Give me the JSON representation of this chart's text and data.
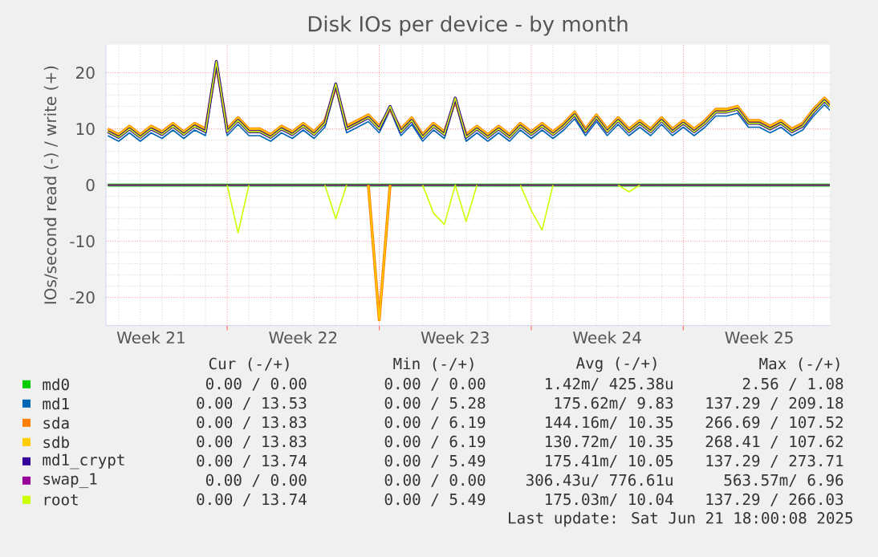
{
  "chart_data": {
    "type": "line",
    "title": "Disk IOs per device - by month",
    "ylabel": "IOs/second read (-) / write (+)",
    "x": [
      "2025-05-19T12:00",
      "2025-05-20T00:00",
      "2025-05-20T12:00",
      "2025-05-21T00:00",
      "2025-05-21T12:00",
      "2025-05-22T00:00",
      "2025-05-22T12:00",
      "2025-05-23T00:00",
      "2025-05-23T12:00",
      "2025-05-24T00:00",
      "2025-05-24T12:00",
      "2025-05-25T00:00",
      "2025-05-25T12:00",
      "2025-05-26T00:00",
      "2025-05-26T12:00",
      "2025-05-27T00:00",
      "2025-05-27T12:00",
      "2025-05-28T00:00",
      "2025-05-28T12:00",
      "2025-05-29T00:00",
      "2025-05-29T12:00",
      "2025-05-30T00:00",
      "2025-05-30T12:00",
      "2025-05-31T00:00",
      "2025-05-31T12:00",
      "2025-06-01T00:00",
      "2025-06-01T12:00",
      "2025-06-02T00:00",
      "2025-06-02T12:00",
      "2025-06-03T00:00",
      "2025-06-03T12:00",
      "2025-06-04T00:00",
      "2025-06-04T12:00",
      "2025-06-05T00:00",
      "2025-06-05T12:00",
      "2025-06-06T00:00",
      "2025-06-06T12:00",
      "2025-06-07T00:00",
      "2025-06-07T12:00",
      "2025-06-08T00:00",
      "2025-06-08T12:00",
      "2025-06-09T00:00",
      "2025-06-09T12:00",
      "2025-06-10T00:00",
      "2025-06-10T12:00",
      "2025-06-11T00:00",
      "2025-06-11T12:00",
      "2025-06-12T00:00",
      "2025-06-12T12:00",
      "2025-06-13T00:00",
      "2025-06-13T12:00",
      "2025-06-14T00:00",
      "2025-06-14T12:00",
      "2025-06-15T00:00",
      "2025-06-15T12:00",
      "2025-06-16T00:00",
      "2025-06-16T12:00",
      "2025-06-17T00:00",
      "2025-06-17T12:00",
      "2025-06-18T00:00",
      "2025-06-18T12:00",
      "2025-06-19T00:00",
      "2025-06-19T12:00",
      "2025-06-20T00:00",
      "2025-06-20T12:00",
      "2025-06-21T00:00",
      "2025-06-21T12:00",
      "2025-06-21T18:00"
    ],
    "xlim": [
      "2025-05-19T10:00",
      "2025-06-21T18:00"
    ],
    "xticks": [
      {
        "value": "2025-05-25",
        "label": null
      },
      {
        "value": "2025-06-01",
        "label": null
      },
      {
        "value": "2025-06-08",
        "label": null
      },
      {
        "value": "2025-06-15",
        "label": null
      },
      {
        "value": "2025-05-21T12:00",
        "label": "Week 21"
      },
      {
        "value": "2025-05-28T12:00",
        "label": "Week 22"
      },
      {
        "value": "2025-06-04T12:00",
        "label": "Week 23"
      },
      {
        "value": "2025-06-11T12:00",
        "label": "Week 24"
      },
      {
        "value": "2025-06-18T12:00",
        "label": "Week 25"
      }
    ],
    "ylim": [
      -25,
      25
    ],
    "yticks": [
      -20,
      -10,
      0,
      10,
      20
    ],
    "grid": true,
    "legend": "bottom",
    "series": [
      {
        "name": "md0",
        "color": "#00cc00",
        "values": [
          0,
          0,
          0,
          0,
          0,
          0,
          0,
          0,
          0,
          0,
          0,
          0,
          0,
          0,
          0,
          0,
          0,
          0,
          0,
          0,
          0,
          0,
          0,
          0,
          0,
          0,
          0,
          0,
          0,
          0,
          0,
          0,
          0,
          0,
          0,
          0,
          0,
          0,
          0,
          0,
          0,
          0,
          0,
          0,
          0,
          0,
          0,
          0,
          0,
          0,
          0,
          0,
          0,
          0,
          0,
          0,
          0,
          0,
          0,
          0,
          0,
          0,
          0,
          0,
          0,
          0,
          0,
          0
        ]
      },
      {
        "name": "md1",
        "color": "#0066b3",
        "values": [
          8.8,
          7.8,
          9.3,
          7.8,
          9.3,
          8.3,
          9.8,
          8.3,
          9.8,
          8.8,
          21.3,
          8.8,
          10.8,
          8.8,
          8.8,
          7.8,
          9.3,
          8.3,
          9.8,
          8.3,
          10.3,
          17.3,
          9.3,
          10.3,
          11.3,
          9.3,
          13.3,
          8.8,
          10.8,
          7.8,
          9.8,
          8.3,
          14.8,
          7.8,
          9.3,
          7.8,
          9.3,
          7.8,
          9.8,
          8.3,
          9.8,
          8.3,
          9.8,
          11.8,
          8.8,
          11.3,
          8.8,
          10.8,
          8.8,
          10.3,
          8.8,
          10.8,
          8.8,
          10.3,
          8.8,
          10.3,
          12.3,
          12.3,
          12.8,
          10.3,
          10.3,
          9.3,
          10.3,
          8.8,
          9.8,
          12.3,
          14.3,
          13.3
        ]
      },
      {
        "name": "sda",
        "color": "#ff8000",
        "values": [
          10,
          9,
          10.5,
          9,
          10.5,
          9.5,
          11,
          9.5,
          11,
          10,
          21.5,
          10,
          12,
          10,
          10,
          9,
          10.5,
          9.5,
          11,
          9.5,
          11.5,
          17.5,
          10.5,
          11.5,
          12.5,
          10.5,
          13.5,
          10,
          12,
          9,
          11,
          9.5,
          15,
          9,
          10.5,
          9,
          10.5,
          9,
          11,
          9.5,
          11,
          9.5,
          11,
          13,
          10,
          12.5,
          10,
          12,
          10,
          11.5,
          10,
          12,
          10,
          11.5,
          10,
          11.5,
          13.5,
          13.5,
          14,
          11.5,
          11.5,
          10.5,
          11.5,
          10,
          11,
          13.5,
          15.5,
          14.5
        ]
      },
      {
        "name": "sdb",
        "color": "#ffcc00",
        "values": [
          10,
          9,
          10.5,
          9,
          10.5,
          9.5,
          11,
          9.5,
          11,
          10,
          21.5,
          10,
          12,
          10,
          10,
          9,
          10.5,
          9.5,
          11,
          9.5,
          11.5,
          17.5,
          10.5,
          11.5,
          12.5,
          10.5,
          13.5,
          10,
          12,
          9,
          11,
          9.5,
          15,
          9,
          10.5,
          9,
          10.5,
          9,
          11,
          9.5,
          11,
          9.5,
          11,
          13,
          10,
          12.5,
          10,
          12,
          10,
          11.5,
          10,
          12,
          10,
          11.5,
          10,
          11.5,
          13.5,
          13.5,
          14,
          11.5,
          11.5,
          10.5,
          11.5,
          10,
          11,
          13.5,
          15.5,
          14.5
        ]
      },
      {
        "name": "md1_crypt",
        "color": "#330099",
        "values": [
          9.5,
          8.5,
          10,
          8.5,
          10,
          9,
          10.5,
          9,
          10.5,
          9.5,
          22,
          9.5,
          11.5,
          9.5,
          9.5,
          8.5,
          10,
          9,
          10.5,
          9,
          11,
          18,
          10,
          11,
          12,
          10,
          14,
          9.5,
          11.5,
          8.5,
          10.5,
          9,
          15.5,
          8.5,
          10,
          8.5,
          10,
          8.5,
          10.5,
          9,
          10.5,
          9,
          10.5,
          12.5,
          9.5,
          12,
          9.5,
          11.5,
          9.5,
          11,
          9.5,
          11.5,
          9.5,
          11,
          9.5,
          11,
          13,
          13,
          13.5,
          11,
          11,
          10,
          11,
          9.5,
          10.5,
          13,
          15,
          14
        ]
      },
      {
        "name": "swap_1",
        "color": "#990099",
        "values": [
          0,
          0,
          0,
          0,
          0,
          0,
          0,
          0,
          0,
          0,
          0,
          0,
          0,
          0,
          0,
          0,
          0,
          0,
          0,
          0,
          0,
          0,
          0,
          0,
          0,
          0,
          0,
          0,
          0,
          0,
          0,
          0,
          0,
          0,
          0,
          0,
          0,
          0,
          0,
          0,
          0,
          0,
          0,
          0,
          0,
          0,
          0,
          0,
          0,
          0,
          0,
          0,
          0,
          0,
          0,
          0,
          0,
          0,
          0,
          0,
          0,
          0,
          0,
          0,
          0,
          0,
          0,
          0
        ]
      },
      {
        "name": "root",
        "color": "#ccff00",
        "values": [
          9.5,
          8.5,
          10,
          8.5,
          10,
          9,
          10.5,
          9,
          10.5,
          9.5,
          22,
          9.5,
          11.5,
          9.5,
          9.5,
          8.5,
          10,
          9,
          10.5,
          9,
          11,
          18,
          10,
          11,
          12,
          10,
          14,
          9.5,
          11.5,
          8.5,
          10.5,
          9,
          15.5,
          8.5,
          10,
          8.5,
          10,
          8.5,
          10.5,
          9,
          10.5,
          9,
          10.5,
          12.5,
          9.5,
          12,
          9.5,
          11.5,
          9.5,
          11,
          9.5,
          11.5,
          9.5,
          11,
          9.5,
          11,
          13,
          13,
          13.5,
          11,
          11,
          10,
          11,
          9.5,
          10.5,
          13,
          15,
          14
        ]
      },
      {
        "color": "#ff8000",
        "values": [
          null,
          null,
          null,
          null,
          null,
          null,
          null,
          null,
          null,
          null,
          null,
          null,
          null,
          null,
          null,
          null,
          null,
          null,
          null,
          null,
          null,
          null,
          null,
          null,
          0,
          -24,
          0,
          null,
          null,
          null,
          null,
          null,
          null,
          null,
          null,
          null,
          null,
          null,
          null,
          null,
          null,
          null,
          null,
          null,
          null,
          null,
          null,
          null,
          null,
          null,
          null,
          null,
          null,
          null,
          null,
          null,
          null,
          null,
          null,
          null,
          null,
          null,
          null,
          null,
          null,
          null,
          null,
          null
        ]
      },
      {
        "color": "#ffcc00",
        "values": [
          null,
          null,
          null,
          null,
          null,
          null,
          null,
          null,
          null,
          null,
          null,
          null,
          null,
          null,
          null,
          null,
          null,
          null,
          null,
          null,
          null,
          null,
          null,
          null,
          0,
          -24,
          0,
          null,
          null,
          null,
          null,
          null,
          null,
          null,
          null,
          null,
          null,
          null,
          null,
          null,
          null,
          null,
          null,
          null,
          null,
          null,
          null,
          null,
          null,
          null,
          null,
          null,
          null,
          null,
          null,
          null,
          null,
          null,
          null,
          null,
          null,
          null,
          null,
          null,
          null,
          null,
          null,
          null
        ]
      },
      {
        "color": "#ccff00",
        "values": [
          null,
          null,
          null,
          null,
          null,
          null,
          null,
          null,
          null,
          null,
          null,
          0,
          -8.5,
          0,
          null,
          null,
          null,
          null,
          null,
          null,
          0,
          -6,
          0,
          null,
          null,
          null,
          null,
          null,
          null,
          0,
          -5,
          -7,
          0,
          -6.5,
          0,
          null,
          null,
          null,
          0,
          -4.5,
          -8,
          0,
          null,
          null,
          null,
          null,
          null,
          0,
          -1.2,
          0,
          null,
          null,
          null,
          null,
          null,
          null,
          null,
          null,
          null,
          null,
          null,
          null,
          null,
          null,
          null,
          null,
          null,
          null
        ]
      }
    ],
    "annotations": [
      "Cur (-/+)",
      "Min (-/+)",
      "Avg (-/+)",
      "Max (-/+)",
      "0.00 / 0.00",
      "0.00 / 0.00",
      "1.42m/ 425.38u",
      "2.56 / 1.08",
      "0.00 / 13.53",
      "0.00 / 5.28",
      "175.62m/ 9.83",
      "137.29 / 209.18",
      "0.00 / 13.83",
      "0.00 / 6.19",
      "144.16m/ 10.35",
      "266.69 / 107.52",
      "0.00 / 13.83",
      "0.00 / 6.19",
      "130.72m/ 10.35",
      "268.41 / 107.62",
      "0.00 / 13.74",
      "0.00 / 5.49",
      "175.41m/ 10.05",
      "137.29 / 273.71",
      "0.00 / 0.00",
      "0.00 / 0.00",
      "306.43u/ 776.61u",
      "563.57m/ 6.96",
      "0.00 / 13.74",
      "0.00 / 5.49",
      "175.03m/ 10.04",
      "137.29 / 266.03",
      "Last update: Sat Jun 21 18:00:08 2025"
    ]
  }
}
